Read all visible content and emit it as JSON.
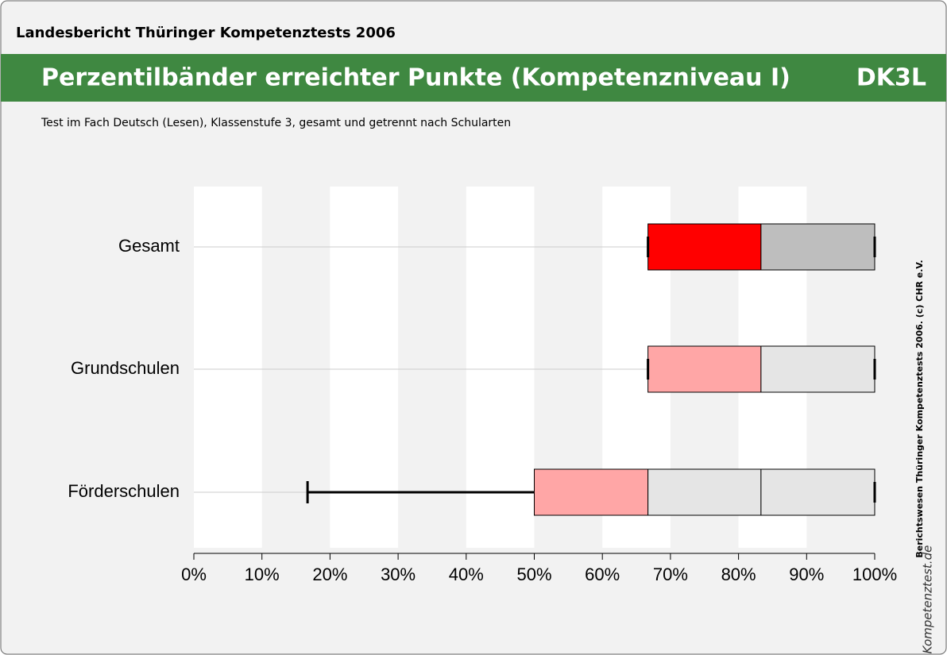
{
  "header": {
    "title": "Landesbericht Thüringer Kompetenztests 2006"
  },
  "chart_data": {
    "type": "percentile_bands",
    "title": "Perzentilbänder erreichter Punkte (Kompetenzniveau I)",
    "code": "DK3L",
    "subtitle": "Test im Fach Deutsch (Lesen), Klassenstufe 3, gesamt und getrennt nach Schularten",
    "xlim": [
      0,
      100
    ],
    "xticks": [
      {
        "value": 0,
        "label": "0%"
      },
      {
        "value": 10,
        "label": "10%"
      },
      {
        "value": 20,
        "label": "20%"
      },
      {
        "value": 30,
        "label": "30%"
      },
      {
        "value": 40,
        "label": "40%"
      },
      {
        "value": 50,
        "label": "50%"
      },
      {
        "value": 60,
        "label": "60%"
      },
      {
        "value": 70,
        "label": "70%"
      },
      {
        "value": 80,
        "label": "80%"
      },
      {
        "value": 90,
        "label": "90%"
      },
      {
        "value": 100,
        "label": "100%"
      }
    ],
    "rows": [
      {
        "name": "Gesamt",
        "whisker": [
          66.7,
          100
        ],
        "bands": [
          66.7,
          83.3,
          100
        ],
        "band_colors": [
          "#ff0000",
          "#bebebe"
        ]
      },
      {
        "name": "Grundschulen",
        "whisker": [
          66.7,
          100
        ],
        "bands": [
          66.7,
          83.3,
          100
        ],
        "band_colors": [
          "#ffa6a6",
          "#e5e5e5"
        ]
      },
      {
        "name": "Förderschulen",
        "whisker": [
          16.7,
          100
        ],
        "bands": [
          50,
          66.7,
          83.3,
          100
        ],
        "band_colors": [
          "#ffa6a6",
          "#e5e5e5",
          "#e5e5e5"
        ]
      }
    ]
  },
  "footer": {
    "copyright": "Berichtswesen Thüringer Kompetenztests 2006. (c) CHR e.V.",
    "logo": "Kompetenztest.de"
  }
}
